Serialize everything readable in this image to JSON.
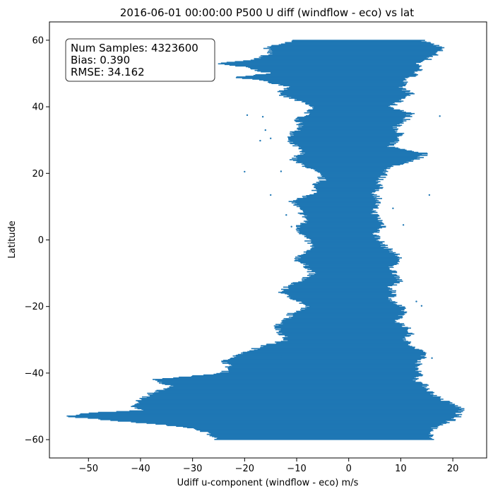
{
  "chart_data": {
    "type": "scatter",
    "title": "2016-06-01 00:00:00 P500 U diff (windflow - eco) vs lat",
    "xlabel": "Udiff u-component (windflow - eco) m/s",
    "ylabel": "Latitude",
    "xlim": [
      -57.5,
      26.5
    ],
    "ylim": [
      -65.5,
      65.5
    ],
    "x_ticks": [
      -50,
      -40,
      -30,
      -20,
      -10,
      0,
      10,
      20
    ],
    "y_ticks": [
      -60,
      -40,
      -20,
      0,
      20,
      40,
      60
    ],
    "x_tick_labels": [
      "−50",
      "−40",
      "−30",
      "−20",
      "−10",
      "0",
      "10",
      "20"
    ],
    "y_tick_labels": [
      "−60",
      "−40",
      "−20",
      "0",
      "20",
      "40",
      "60"
    ],
    "grid": false,
    "color": "#1f77b4",
    "stats": {
      "lines": [
        "Num Samples: 4323600",
        "Bias: 0.390",
        "RMSE: 34.162"
      ],
      "placement": "top-left"
    },
    "envelope": [
      {
        "lat": 60,
        "min": -10,
        "max": 14
      },
      {
        "lat": 58,
        "min": -16,
        "max": 18
      },
      {
        "lat": 56,
        "min": -15,
        "max": 17
      },
      {
        "lat": 54,
        "min": -19,
        "max": 15
      },
      {
        "lat": 53,
        "min": -26,
        "max": 13
      },
      {
        "lat": 52,
        "min": -20,
        "max": 14
      },
      {
        "lat": 50,
        "min": -15,
        "max": 13
      },
      {
        "lat": 49,
        "min": -22,
        "max": 12
      },
      {
        "lat": 48,
        "min": -17,
        "max": 11
      },
      {
        "lat": 46,
        "min": -11,
        "max": 10
      },
      {
        "lat": 44,
        "min": -14,
        "max": 12
      },
      {
        "lat": 42,
        "min": -10,
        "max": 10
      },
      {
        "lat": 40,
        "min": -7,
        "max": 8
      },
      {
        "lat": 38,
        "min": -8,
        "max": 12
      },
      {
        "lat": 36,
        "min": -10,
        "max": 11
      },
      {
        "lat": 34,
        "min": -9,
        "max": 9
      },
      {
        "lat": 32,
        "min": -11,
        "max": 10
      },
      {
        "lat": 30,
        "min": -12,
        "max": 9
      },
      {
        "lat": 28,
        "min": -10,
        "max": 8
      },
      {
        "lat": 26,
        "min": -9,
        "max": 15
      },
      {
        "lat": 24,
        "min": -11,
        "max": 13
      },
      {
        "lat": 22,
        "min": -8,
        "max": 8
      },
      {
        "lat": 20,
        "min": -6,
        "max": 7
      },
      {
        "lat": 18,
        "min": -5,
        "max": 6
      },
      {
        "lat": 16,
        "min": -7,
        "max": 6
      },
      {
        "lat": 14,
        "min": -6,
        "max": 5
      },
      {
        "lat": 12,
        "min": -11,
        "max": 6
      },
      {
        "lat": 10,
        "min": -10,
        "max": 5
      },
      {
        "lat": 8,
        "min": -9,
        "max": 5
      },
      {
        "lat": 6,
        "min": -8,
        "max": 6
      },
      {
        "lat": 4,
        "min": -10,
        "max": 7
      },
      {
        "lat": 2,
        "min": -9,
        "max": 5
      },
      {
        "lat": 0,
        "min": -8,
        "max": 6
      },
      {
        "lat": -2,
        "min": -7,
        "max": 7
      },
      {
        "lat": -4,
        "min": -9,
        "max": 9
      },
      {
        "lat": -6,
        "min": -10,
        "max": 10
      },
      {
        "lat": -8,
        "min": -8,
        "max": 8
      },
      {
        "lat": -10,
        "min": -7,
        "max": 9
      },
      {
        "lat": -12,
        "min": -9,
        "max": 10
      },
      {
        "lat": -14,
        "min": -12,
        "max": 8
      },
      {
        "lat": -16,
        "min": -13,
        "max": 9
      },
      {
        "lat": -18,
        "min": -10,
        "max": 8
      },
      {
        "lat": -20,
        "min": -8,
        "max": 10
      },
      {
        "lat": -22,
        "min": -11,
        "max": 11
      },
      {
        "lat": -24,
        "min": -12,
        "max": 9
      },
      {
        "lat": -26,
        "min": -14,
        "max": 11
      },
      {
        "lat": -28,
        "min": -13,
        "max": 12
      },
      {
        "lat": -30,
        "min": -12,
        "max": 11
      },
      {
        "lat": -32,
        "min": -17,
        "max": 12
      },
      {
        "lat": -34,
        "min": -20,
        "max": 15
      },
      {
        "lat": -36,
        "min": -24,
        "max": 14
      },
      {
        "lat": -38,
        "min": -23,
        "max": 13
      },
      {
        "lat": -40,
        "min": -24,
        "max": 14
      },
      {
        "lat": -42,
        "min": -38,
        "max": 13
      },
      {
        "lat": -44,
        "min": -34,
        "max": 15
      },
      {
        "lat": -46,
        "min": -38,
        "max": 16
      },
      {
        "lat": -48,
        "min": -40,
        "max": 18
      },
      {
        "lat": -50,
        "min": -42,
        "max": 21
      },
      {
        "lat": -51,
        "min": -39,
        "max": 22
      },
      {
        "lat": -52,
        "min": -50,
        "max": 21
      },
      {
        "lat": -53,
        "min": -54,
        "max": 21
      },
      {
        "lat": -54,
        "min": -47,
        "max": 20
      },
      {
        "lat": -56,
        "min": -32,
        "max": 17
      },
      {
        "lat": -58,
        "min": -27,
        "max": 15
      },
      {
        "lat": -60,
        "min": -25,
        "max": 17
      }
    ],
    "outliers": [
      {
        "x": -19.5,
        "y": 37.5
      },
      {
        "x": -16.5,
        "y": 37.0
      },
      {
        "x": 17.5,
        "y": 37.2
      },
      {
        "x": -16.0,
        "y": 33.0
      },
      {
        "x": -15.0,
        "y": 30.5
      },
      {
        "x": -17.0,
        "y": 29.8
      },
      {
        "x": -20.0,
        "y": 20.5
      },
      {
        "x": -13.0,
        "y": 20.6
      },
      {
        "x": 7.0,
        "y": 21.5
      },
      {
        "x": -15.0,
        "y": 13.5
      },
      {
        "x": 15.5,
        "y": 13.5
      },
      {
        "x": -12.0,
        "y": 7.5
      },
      {
        "x": 8.5,
        "y": 9.5
      },
      {
        "x": -11.0,
        "y": 4.0
      },
      {
        "x": 10.5,
        "y": 4.5
      },
      {
        "x": 13.0,
        "y": -18.5
      },
      {
        "x": 14.0,
        "y": -19.8
      },
      {
        "x": -7.5,
        "y": -20.2
      },
      {
        "x": -13.0,
        "y": -35.0
      },
      {
        "x": 16.0,
        "y": -35.5
      },
      {
        "x": -21.0,
        "y": -39.0
      }
    ]
  }
}
